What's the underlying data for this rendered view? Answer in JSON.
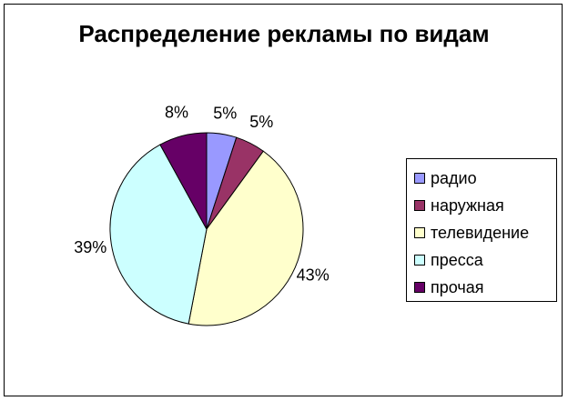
{
  "chart_data": {
    "type": "pie",
    "title": "Распределение рекламы по видам",
    "categories": [
      "радио",
      "наружная",
      "телевидение",
      "пресса",
      "прочая"
    ],
    "values": [
      5,
      5,
      43,
      39,
      8
    ],
    "value_labels": [
      "5%",
      "5%",
      "43%",
      "39%",
      "8%"
    ],
    "colors": [
      "#9999ff",
      "#993366",
      "#ffffcc",
      "#ccffff",
      "#660066"
    ],
    "legend_position": "right",
    "start_angle_deg": 0,
    "direction": "clockwise"
  }
}
